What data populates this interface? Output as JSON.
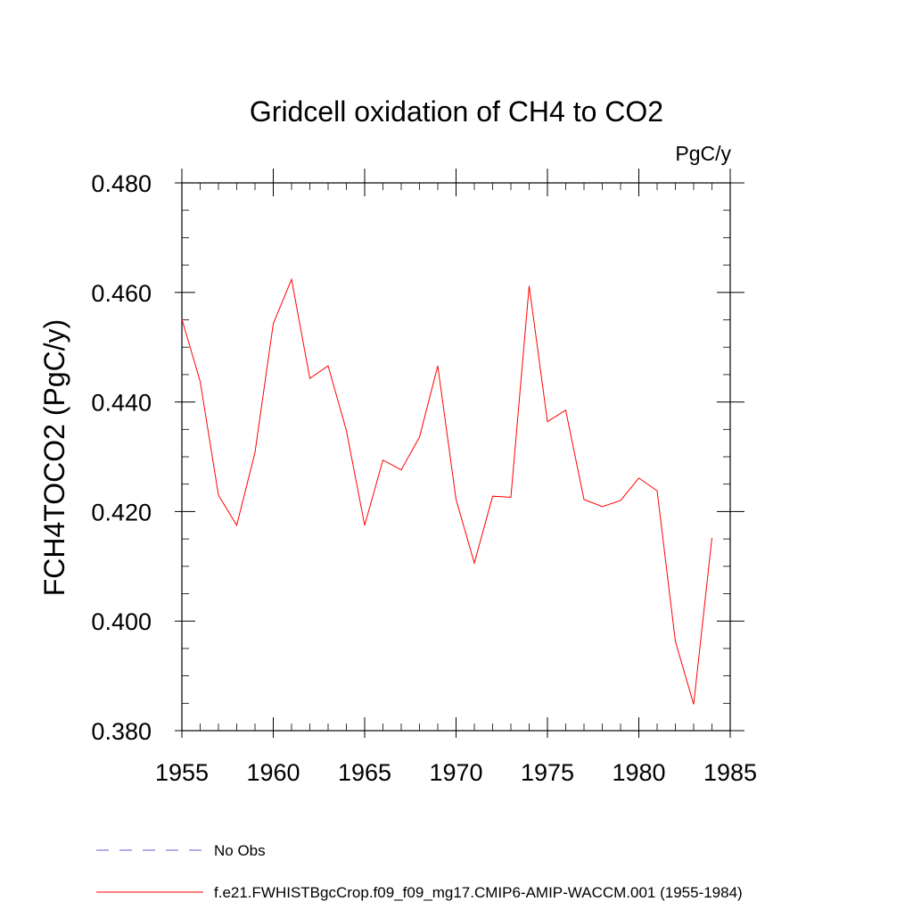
{
  "chart_data": {
    "type": "line",
    "title": "Gridcell oxidation of CH4 to CO2",
    "units_label": "PgC/y",
    "xlabel": "",
    "ylabel": "FCH4TOCO2  (PgC/y)",
    "xlim": [
      1955,
      1985
    ],
    "ylim": [
      0.38,
      0.48
    ],
    "x_ticks": [
      1955,
      1960,
      1965,
      1970,
      1975,
      1980,
      1985
    ],
    "x_tick_labels": [
      "1955",
      "1960",
      "1965",
      "1970",
      "1975",
      "1980",
      "1985"
    ],
    "y_ticks": [
      0.38,
      0.4,
      0.42,
      0.44,
      0.46,
      0.48
    ],
    "y_tick_labels": [
      "0.380",
      "0.400",
      "0.420",
      "0.440",
      "0.460",
      "0.480"
    ],
    "grid": false,
    "legend_position": "bottom",
    "series": [
      {
        "name": "f.e21.FWHISTBgcCrop.f09_f09_mg17.CMIP6-AMIP-WACCM.001 (1955-1984)",
        "color": "#ff0000",
        "style": "solid",
        "x": [
          1955,
          1956,
          1957,
          1958,
          1959,
          1960,
          1961,
          1962,
          1963,
          1964,
          1965,
          1966,
          1967,
          1968,
          1969,
          1970,
          1971,
          1972,
          1973,
          1974,
          1975,
          1976,
          1977,
          1978,
          1979,
          1980,
          1981,
          1982,
          1983,
          1984
        ],
        "y": [
          0.4551,
          0.4438,
          0.423,
          0.4175,
          0.4308,
          0.4543,
          0.4624,
          0.4443,
          0.4466,
          0.4348,
          0.4175,
          0.4294,
          0.4276,
          0.4336,
          0.4466,
          0.4222,
          0.4106,
          0.4228,
          0.4226,
          0.4612,
          0.4364,
          0.4385,
          0.4222,
          0.4209,
          0.422,
          0.4261,
          0.4238,
          0.3963,
          0.3848,
          0.4152
        ]
      }
    ],
    "legend": [
      {
        "label": "No Obs",
        "color": "#6a5acd",
        "style": "dashed"
      },
      {
        "label": "f.e21.FWHISTBgcCrop.f09_f09_mg17.CMIP6-AMIP-WACCM.001 (1955-1984)",
        "color": "#ff0000",
        "style": "solid"
      }
    ]
  }
}
